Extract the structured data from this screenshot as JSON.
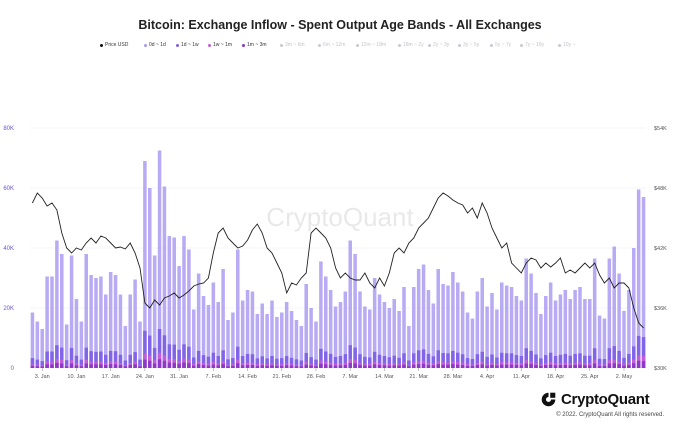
{
  "title": "Bitcoin: Exchange Inflow - Spent Output Age Bands - All Exchanges",
  "legend": [
    {
      "label": "Price USD",
      "color": "#111111",
      "active": true
    },
    {
      "label": "0d ~ 1d",
      "color": "#a899f2",
      "active": true
    },
    {
      "label": "1d ~ 1w",
      "color": "#7c5ce8",
      "active": true
    },
    {
      "label": "1w ~ 1m",
      "color": "#c75cd6",
      "active": true
    },
    {
      "label": "1m ~ 3m",
      "color": "#8a34c7",
      "active": true
    },
    {
      "label": "3m ~ 6m",
      "color": "#c8c8d2",
      "active": false
    },
    {
      "label": "6m ~ 12m",
      "color": "#c8c8d2",
      "active": false
    },
    {
      "label": "12m ~ 18m",
      "color": "#c8c8d2",
      "active": false
    },
    {
      "label": "18m ~ 2y",
      "color": "#c8c8d2",
      "active": false
    },
    {
      "label": "2y ~ 3y",
      "color": "#c8c8d2",
      "active": false
    },
    {
      "label": "3y ~ 5y",
      "color": "#c8c8d2",
      "active": false
    },
    {
      "label": "5y ~ 7y",
      "color": "#c8c8d2",
      "active": false
    },
    {
      "label": "7y ~ 10y",
      "color": "#c8c8d2",
      "active": false
    },
    {
      "label": "10y ~",
      "color": "#c8c8d2",
      "active": false
    }
  ],
  "watermark": "CryptoQuant",
  "brand": {
    "name": "CryptoQuant",
    "copyright": "© 2022. CryptoQuant All rights reserved."
  },
  "colors": {
    "bar_main": "#a899f2",
    "bar_1d_1w": "#7c5ce8",
    "bar_1w_1m": "#c75cd6",
    "bar_1m_3m": "#8a34c7",
    "price_line": "#222222",
    "axis_text": "#6a55d8"
  },
  "chart_data": {
    "type": "bar",
    "title": "Bitcoin: Exchange Inflow - Spent Output Age Bands - All Exchanges",
    "x_tick_labels": [
      "3. Jan",
      "10. Jan",
      "17. Jan",
      "24. Jan",
      "31. Jan",
      "7. Feb",
      "14. Feb",
      "21. Feb",
      "28. Feb",
      "7. Mar",
      "14. Mar",
      "21. Mar",
      "28. Mar",
      "4. Apr",
      "11. Apr",
      "18. Apr",
      "25. Apr",
      "2. May"
    ],
    "x_tick_positions": [
      2,
      9,
      16,
      23,
      30,
      37,
      44,
      51,
      58,
      65,
      72,
      79,
      86,
      93,
      100,
      107,
      114,
      121
    ],
    "y_left": {
      "ticks": [
        0,
        20000,
        40000,
        60000,
        80000
      ],
      "tick_labels": [
        "0",
        "20K",
        "40K",
        "60K",
        "80K"
      ],
      "ylim": [
        0,
        80000
      ]
    },
    "y_right": {
      "ticks": [
        30000,
        36000,
        42000,
        48000,
        54000
      ],
      "tick_labels": [
        "$30K",
        "$36K",
        "$42K",
        "$48K",
        "$54K"
      ],
      "ylim": [
        30000,
        54000
      ]
    },
    "grid": true,
    "legend_position": "top",
    "series": [
      {
        "name": "0d ~ 1d",
        "type": "bar",
        "values": [
          18500,
          15500,
          13000,
          30500,
          30500,
          42500,
          38000,
          14500,
          37500,
          23000,
          15500,
          38000,
          31000,
          30000,
          30500,
          24500,
          32000,
          31000,
          24500,
          14000,
          24500,
          29500,
          15500,
          69000,
          60000,
          37500,
          72500,
          60500,
          44000,
          43500,
          34000,
          44000,
          39500,
          19500,
          31500,
          24000,
          21000,
          28500,
          22000,
          33000,
          16000,
          18500,
          39500,
          22500,
          26000,
          25500,
          18000,
          21500,
          18000,
          22500,
          17000,
          18500,
          22000,
          19000,
          16000,
          14000,
          28000,
          20000,
          15500,
          35500,
          30500,
          26000,
          20500,
          22000,
          25500,
          42500,
          38000,
          25500,
          20500,
          19500,
          30000,
          24500,
          22000,
          20000,
          23000,
          19000,
          27000,
          14000,
          27000,
          33000,
          34500,
          26000,
          21500,
          33000,
          28000,
          27500,
          32000,
          28500,
          25500,
          18500,
          16500,
          25500,
          30000,
          20500,
          25000,
          19500,
          28500,
          27500,
          27000,
          24000,
          22500,
          36500,
          31500,
          25000,
          18000,
          24000,
          28500,
          22500,
          24500,
          26000,
          23000,
          26000,
          27000,
          23000,
          23000,
          36500,
          17500,
          16500,
          36500,
          40500,
          31500,
          19000,
          26000,
          40000,
          59500,
          57000
        ]
      },
      {
        "name": "1d ~ 1w",
        "type": "bar",
        "values": [
          3300,
          2800,
          2300,
          5500,
          5500,
          7600,
          6800,
          2600,
          6700,
          4100,
          2800,
          6800,
          5600,
          5400,
          5500,
          4400,
          5700,
          5600,
          4400,
          2500,
          4400,
          5300,
          2800,
          12400,
          10800,
          6700,
          13000,
          10900,
          7900,
          7800,
          6100,
          7900,
          7100,
          3500,
          5700,
          4300,
          3800,
          5100,
          4000,
          5900,
          2900,
          3300,
          7100,
          4000,
          4700,
          4600,
          3200,
          3900,
          3200,
          4000,
          3100,
          3300,
          4000,
          3400,
          2900,
          2500,
          5000,
          3600,
          2800,
          6400,
          5500,
          4700,
          3700,
          4000,
          4600,
          7600,
          6800,
          4600,
          3700,
          3500,
          5400,
          4400,
          4000,
          3600,
          4100,
          3400,
          4900,
          2500,
          4900,
          5900,
          6200,
          4700,
          3900,
          5900,
          5000,
          4900,
          5700,
          5100,
          4600,
          3300,
          3000,
          4600,
          5400,
          3700,
          4500,
          3500,
          5100,
          4900,
          4900,
          4300,
          4000,
          6600,
          5700,
          4500,
          3200,
          4300,
          5100,
          4000,
          4400,
          4700,
          4100,
          4700,
          4900,
          4100,
          4100,
          6600,
          3100,
          3000,
          6600,
          7300,
          5700,
          3400,
          4700,
          7200,
          10700,
          10300
        ]
      },
      {
        "name": "1w ~ 1m",
        "type": "bar",
        "values": [
          1300,
          1100,
          900,
          2100,
          2100,
          3000,
          2700,
          1000,
          2600,
          1600,
          1100,
          2700,
          2200,
          2100,
          2100,
          1700,
          2200,
          2200,
          1700,
          1000,
          1700,
          2100,
          1100,
          4800,
          4200,
          2600,
          5100,
          4200,
          3100,
          3000,
          2400,
          3100,
          2800,
          1400,
          2200,
          1700,
          1500,
          2000,
          1500,
          2300,
          1100,
          1300,
          2800,
          1600,
          1800,
          1800,
          1300,
          1500,
          1300,
          1600,
          1200,
          1300,
          1500,
          1300,
          1100,
          1000,
          2000,
          1400,
          1100,
          2500,
          2100,
          1800,
          1400,
          1500,
          1800,
          3000,
          2700,
          1800,
          1400,
          1400,
          2100,
          1700,
          1500,
          1400,
          1600,
          1300,
          1900,
          1000,
          1900,
          2300,
          2400,
          1800,
          1500,
          2300,
          2000,
          1900,
          2200,
          2000,
          1800,
          1300,
          1200,
          1800,
          2100,
          1400,
          1800,
          1400,
          2000,
          1900,
          1900,
          1700,
          1600,
          2600,
          2200,
          1800,
          1300,
          1700,
          2000,
          1600,
          1700,
          1800,
          1600,
          1800,
          1900,
          1600,
          1600,
          2600,
          1200,
          1200,
          2600,
          2800,
          2200,
          1300,
          1800,
          2800,
          4200,
          4000
        ]
      },
      {
        "name": "1m ~ 3m",
        "type": "bar",
        "values": [
          700,
          600,
          500,
          1200,
          1200,
          1700,
          1500,
          600,
          1500,
          900,
          600,
          1500,
          1200,
          1200,
          1200,
          1000,
          1300,
          1200,
          1000,
          600,
          1000,
          1200,
          600,
          2800,
          2400,
          1500,
          2900,
          2400,
          1800,
          1700,
          1400,
          1800,
          1600,
          800,
          1300,
          1000,
          800,
          1100,
          900,
          1300,
          600,
          700,
          1600,
          900,
          1000,
          1000,
          700,
          900,
          700,
          900,
          700,
          700,
          900,
          800,
          600,
          600,
          1100,
          800,
          600,
          1400,
          1200,
          1000,
          800,
          900,
          1000,
          1700,
          1500,
          1000,
          800,
          800,
          1200,
          1000,
          900,
          800,
          900,
          800,
          1100,
          600,
          1100,
          1300,
          1400,
          1000,
          900,
          1300,
          1100,
          1100,
          1300,
          1100,
          1000,
          700,
          700,
          1000,
          1200,
          800,
          1000,
          800,
          1100,
          1100,
          1100,
          1000,
          900,
          1500,
          1300,
          1000,
          700,
          1000,
          1100,
          900,
          1000,
          1000,
          900,
          1000,
          1100,
          900,
          900,
          1500,
          700,
          700,
          1500,
          1600,
          1300,
          800,
          1000,
          1600,
          2400,
          2300
        ]
      },
      {
        "name": "Price USD",
        "type": "line",
        "axis": "right",
        "values": [
          46500,
          47500,
          47000,
          46200,
          46500,
          45800,
          43500,
          42000,
          41500,
          42000,
          41800,
          42500,
          43000,
          42500,
          43200,
          43000,
          42500,
          42000,
          42100,
          41900,
          42500,
          41500,
          40000,
          36500,
          36000,
          36800,
          36300,
          37000,
          37200,
          37500,
          37000,
          37300,
          37700,
          38200,
          38400,
          38500,
          39000,
          41500,
          43500,
          44000,
          43000,
          42500,
          42000,
          42200,
          42800,
          43800,
          44400,
          43500,
          42000,
          41500,
          40500,
          39500,
          37500,
          38500,
          38300,
          39000,
          39500,
          43500,
          44000,
          43500,
          43000,
          42000,
          40000,
          39000,
          39500,
          39000,
          38800,
          38800,
          39500,
          38500,
          38000,
          39000,
          38200,
          39500,
          41500,
          42000,
          41500,
          42500,
          43000,
          44000,
          44500,
          45000,
          46000,
          47000,
          47500,
          47200,
          46800,
          46500,
          46300,
          45500,
          46000,
          45000,
          46500,
          45500,
          44000,
          43000,
          42000,
          42500,
          40500,
          40000,
          39500,
          40500,
          41000,
          40800,
          40000,
          40500,
          40100,
          40500,
          41000,
          39500,
          39800,
          39500,
          40000,
          40500,
          40000,
          40500,
          39300,
          38500,
          39000,
          38000,
          38500,
          38500,
          38000,
          36000,
          34500,
          34000
        ]
      }
    ]
  }
}
